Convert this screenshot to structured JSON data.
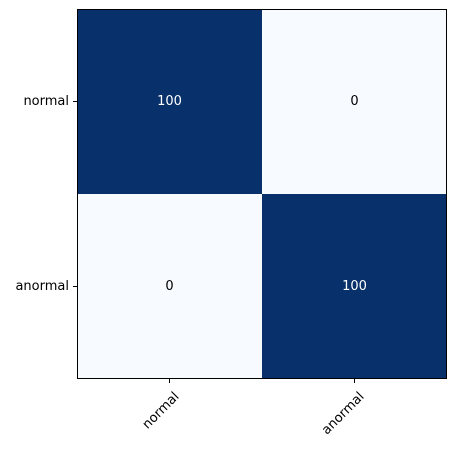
{
  "chart_data": {
    "type": "heatmap",
    "title": "",
    "xlabel": "",
    "ylabel": "",
    "x_categories": [
      "normal",
      "anormal"
    ],
    "y_categories": [
      "normal",
      "anormal"
    ],
    "values": [
      [
        100,
        0
      ],
      [
        0,
        100
      ]
    ],
    "colormap": "Blues",
    "value_range": [
      0,
      100
    ],
    "colors": {
      "low": "#f7fbff",
      "high": "#08306b",
      "text_on_dark": "#ffffff",
      "text_on_light": "#000000",
      "frame": "#000000"
    },
    "x_tick_rotation": 45,
    "grid": false,
    "legend": "none"
  }
}
